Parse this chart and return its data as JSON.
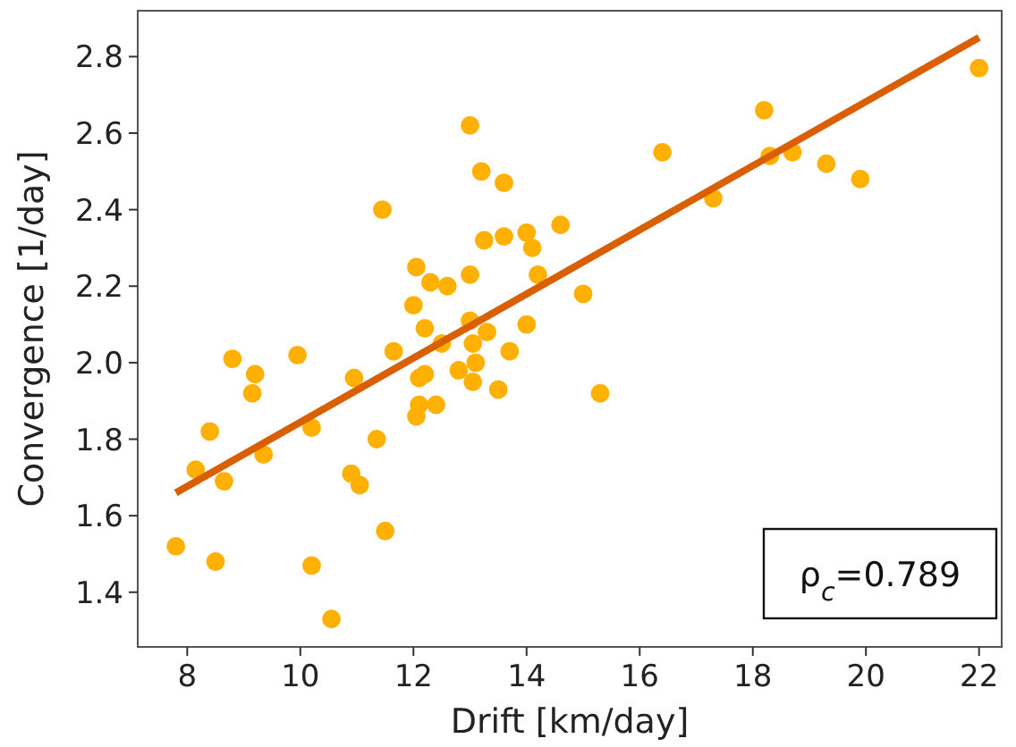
{
  "chart_data": {
    "type": "scatter",
    "xlabel": "Drift [km/day]",
    "ylabel": "Convergence [1/day]",
    "xlim": [
      7.125,
      22.4
    ],
    "ylim": [
      1.257,
      2.92
    ],
    "xticks": [
      8,
      10,
      12,
      14,
      16,
      18,
      20,
      22
    ],
    "yticks": [
      1.4,
      1.6,
      1.8,
      {
        "value": 2.0,
        "label": "2.0"
      },
      2.2,
      2.4,
      2.6,
      2.8
    ],
    "grid": false,
    "annotations": [
      "ρ$_{c}$=0.789"
    ],
    "series": [
      {
        "color": "#ffb000",
        "marker": "circle",
        "x": [
          7.8,
          8.15,
          8.4,
          8.5,
          8.65,
          8.8,
          9.15,
          9.2,
          9.35,
          9.95,
          10.2,
          10.2,
          10.55,
          10.9,
          10.95,
          11.05,
          11.35,
          11.5,
          11.45,
          11.65,
          12.05,
          12.1,
          12.1,
          12.2,
          12.0,
          12.05,
          12.2,
          12.3,
          12.4,
          12.6,
          12.5,
          12.8,
          13.0,
          13.0,
          13.0,
          13.05,
          13.1,
          13.05,
          13.2,
          13.25,
          13.3,
          13.5,
          13.6,
          13.6,
          13.7,
          14.0,
          14.0,
          14.1,
          14.2,
          14.6,
          15.0,
          15.3,
          16.4,
          17.3,
          18.2,
          18.3,
          18.7,
          19.3,
          19.9,
          22.0
        ],
        "values": [
          1.52,
          1.72,
          1.82,
          1.48,
          1.69,
          2.01,
          1.92,
          1.97,
          1.76,
          2.02,
          1.83,
          1.47,
          1.33,
          1.71,
          1.96,
          1.68,
          1.8,
          1.56,
          2.4,
          2.03,
          1.86,
          1.89,
          1.96,
          1.97,
          2.15,
          2.25,
          2.09,
          2.21,
          1.89,
          2.2,
          2.05,
          1.98,
          2.62,
          2.23,
          2.11,
          2.05,
          2.0,
          1.95,
          2.5,
          2.32,
          2.08,
          1.93,
          2.47,
          2.33,
          2.03,
          2.1,
          2.34,
          2.3,
          2.23,
          2.36,
          2.18,
          1.92,
          2.55,
          2.43,
          2.66,
          2.54,
          2.55,
          2.52,
          2.48,
          2.77
        ]
      },
      {
        "type": "line",
        "color": "#d95f02",
        "line_style": "solid",
        "x": [
          7.8,
          22.0
        ],
        "values": [
          1.66,
          2.85
        ]
      }
    ]
  }
}
